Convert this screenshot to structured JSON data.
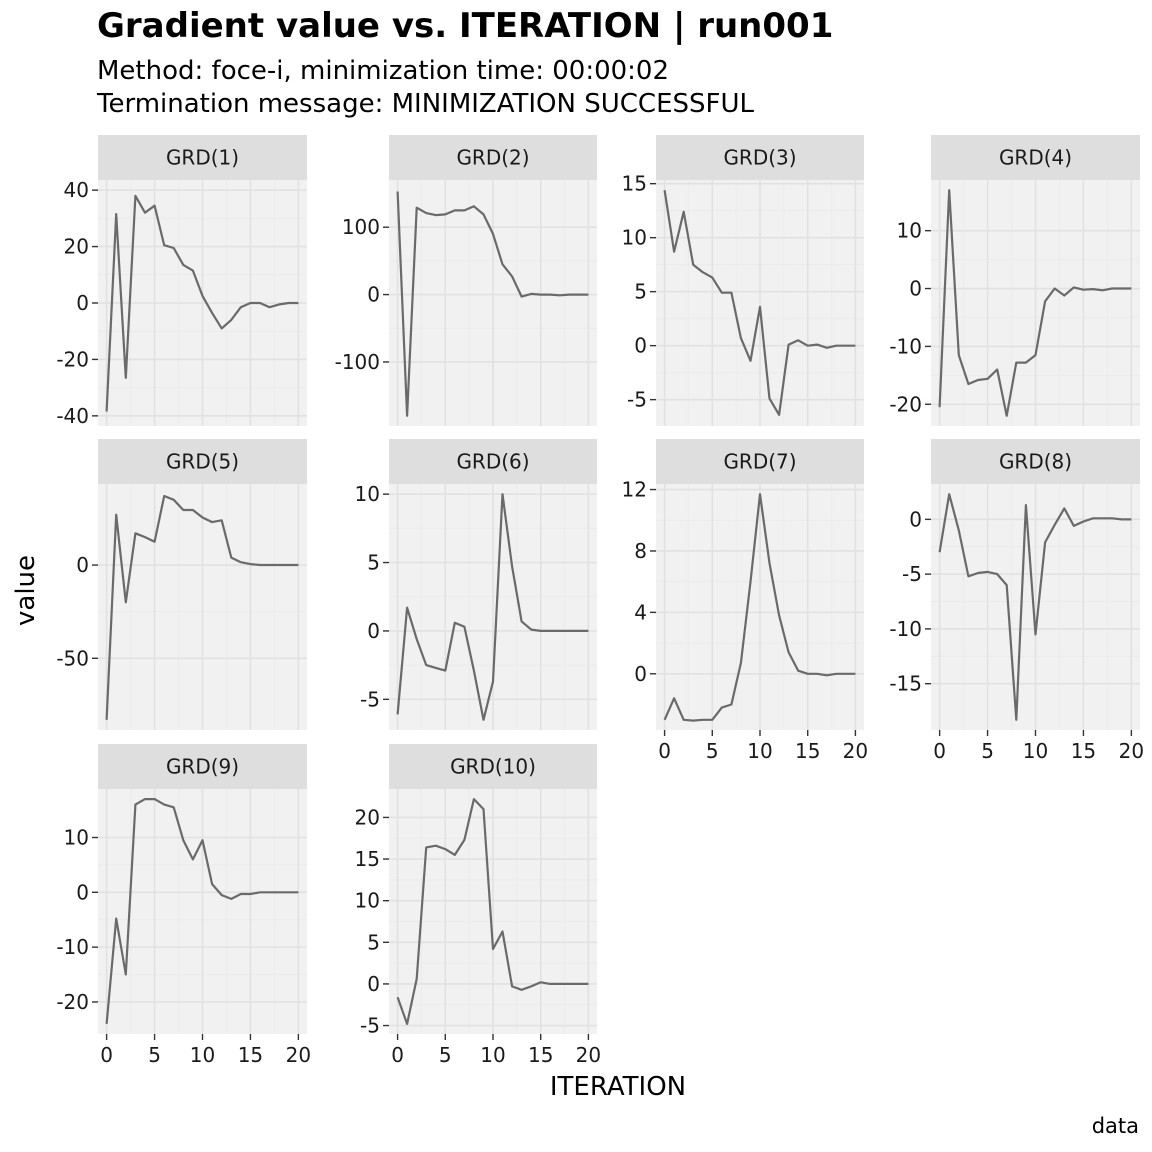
{
  "title": "Gradient value vs. ITERATION | run001",
  "subtitle_line1": "Method: foce-i, minimization time: 00:00:02",
  "subtitle_line2": "Termination message: MINIMIZATION SUCCESSFUL",
  "caption": "data",
  "colors": {
    "panel_bg": "#f1f1f1",
    "strip_bg": "#dedede",
    "grid_major": "#e1e1e1",
    "line": "#6a6a6a",
    "tick_text": "#1a1a1a"
  },
  "chart_data": {
    "type": "line",
    "facet_layout": "4 columns, 3 rows, free y scales",
    "xlabel": "ITERATION",
    "ylabel": "value",
    "xlim": [
      0,
      20
    ],
    "x_ticks": [
      0,
      5,
      10,
      15,
      20
    ],
    "x": [
      0,
      1,
      2,
      3,
      4,
      5,
      6,
      7,
      8,
      9,
      10,
      11,
      12,
      13,
      14,
      15,
      16,
      17,
      18,
      19,
      20
    ],
    "grid": true,
    "panels": [
      {
        "name": "GRD(1)",
        "ylim": [
          -40,
          40
        ],
        "y_ticks": [
          -40,
          -20,
          0,
          20,
          40
        ],
        "values": [
          -38.5,
          31.5,
          -26.5,
          38,
          32,
          34.5,
          20.5,
          19.5,
          13.5,
          11.5,
          2.5,
          -3.5,
          -9,
          -6,
          -1.5,
          0,
          0,
          -1.5,
          -0.5,
          0,
          0
        ]
      },
      {
        "name": "GRD(2)",
        "ylim": [
          -180,
          155
        ],
        "y_ticks": [
          -100,
          0,
          100
        ],
        "values": [
          153,
          -180,
          129,
          121,
          118,
          119,
          125,
          125,
          131,
          119,
          90,
          45,
          27,
          -3,
          1,
          0,
          0,
          -1,
          0,
          0,
          0
        ]
      },
      {
        "name": "GRD(3)",
        "ylim": [
          -6.5,
          14.4
        ],
        "y_ticks": [
          -5,
          0,
          5,
          10,
          15
        ],
        "values": [
          14.4,
          8.7,
          12.4,
          7.5,
          6.8,
          6.3,
          4.9,
          4.9,
          0.7,
          -1.4,
          3.6,
          -4.9,
          -6.4,
          0.1,
          0.5,
          0,
          0.1,
          -0.2,
          0,
          0,
          0
        ]
      },
      {
        "name": "GRD(4)",
        "ylim": [
          -22,
          17
        ],
        "y_ticks": [
          -20,
          -10,
          0,
          10
        ],
        "values": [
          -20.5,
          17,
          -11.5,
          -16.5,
          -15.8,
          -15.6,
          -14,
          -22,
          -12.8,
          -12.8,
          -11.5,
          -2.2,
          0,
          -1.2,
          0.2,
          -0.2,
          -0.1,
          -0.3,
          0,
          0,
          0
        ]
      },
      {
        "name": "GRD(5)",
        "ylim": [
          -83,
          38
        ],
        "y_ticks": [
          -50,
          0
        ],
        "values": [
          -83,
          27,
          -20,
          17,
          15,
          12.5,
          37,
          35,
          29.5,
          29.5,
          25.5,
          23,
          24,
          4,
          1.5,
          0.5,
          0,
          0,
          0,
          0,
          0
        ]
      },
      {
        "name": "GRD(6)",
        "ylim": [
          -6.5,
          10
        ],
        "y_ticks": [
          -5,
          0,
          5,
          10
        ],
        "values": [
          -6.1,
          1.7,
          -0.6,
          -2.5,
          -2.7,
          -2.9,
          0.6,
          0.3,
          -2.9,
          -6.5,
          -3.7,
          10,
          4.7,
          0.7,
          0.1,
          0,
          0,
          0,
          0,
          0,
          0
        ]
      },
      {
        "name": "GRD(7)",
        "ylim": [
          -3,
          11.7
        ],
        "y_ticks": [
          0,
          4,
          8,
          12
        ],
        "values": [
          -3,
          -1.6,
          -3,
          -3.05,
          -3,
          -3,
          -2.2,
          -2,
          0.7,
          6,
          11.7,
          7.2,
          3.8,
          1.4,
          0.2,
          0,
          0,
          -0.1,
          0,
          0,
          0
        ]
      },
      {
        "name": "GRD(8)",
        "ylim": [
          -18.3,
          2.3
        ],
        "y_ticks": [
          -15,
          -10,
          -5,
          0
        ],
        "values": [
          -3,
          2.3,
          -1,
          -5.2,
          -4.9,
          -4.8,
          -5,
          -6,
          -18.3,
          1.3,
          -10.5,
          -2.1,
          -0.5,
          1,
          -0.6,
          -0.2,
          0.1,
          0.1,
          0.1,
          0,
          0
        ]
      },
      {
        "name": "GRD(9)",
        "ylim": [
          -24,
          17
        ],
        "y_ticks": [
          -20,
          -10,
          0,
          10
        ],
        "values": [
          -24,
          -4.8,
          -15,
          16,
          17,
          17,
          16,
          15.5,
          9.5,
          6,
          9.5,
          1.5,
          -0.5,
          -1.2,
          -0.3,
          -0.3,
          0,
          0,
          0,
          0,
          0
        ]
      },
      {
        "name": "GRD(10)",
        "ylim": [
          -4.8,
          22.2
        ],
        "y_ticks": [
          -5,
          0,
          5,
          10,
          15,
          20
        ],
        "values": [
          -1.6,
          -4.8,
          0.6,
          16.4,
          16.6,
          16.2,
          15.5,
          17.3,
          22.2,
          21,
          4.2,
          6.3,
          -0.3,
          -0.7,
          -0.3,
          0.2,
          0,
          0,
          0,
          0,
          0
        ]
      }
    ]
  }
}
